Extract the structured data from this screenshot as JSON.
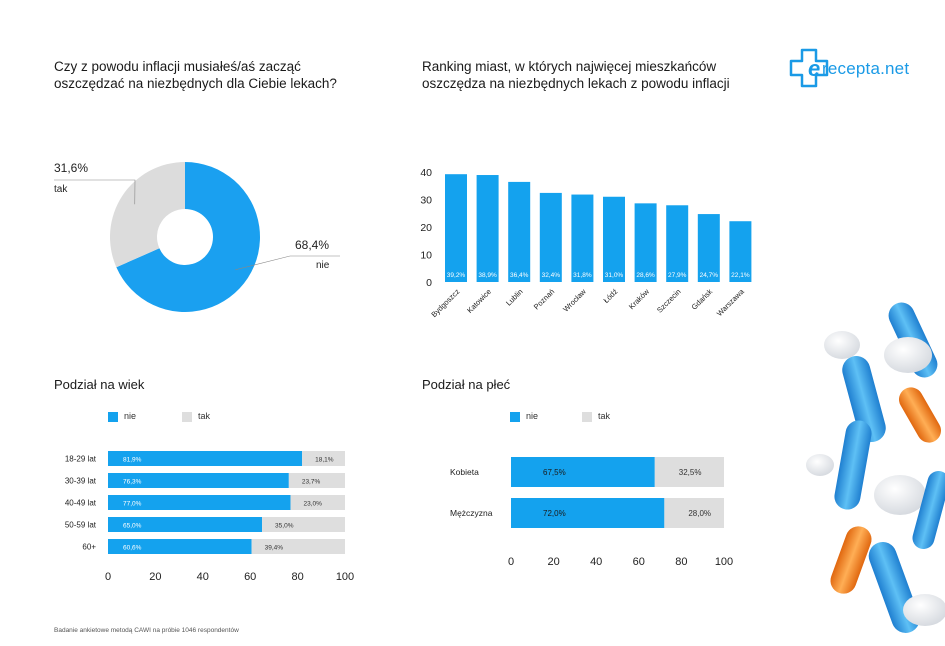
{
  "logo": {
    "text": "recepta.net",
    "brand_color": "#1a9ae6"
  },
  "colors": {
    "nie": "#14a2ee",
    "tak": "#dedede",
    "pie_nie": "#1aa0f0",
    "pie_tak": "#dcdcdc"
  },
  "pie_block": {
    "title_line1": "Czy z powodu inflacji musiałeś/aś zacząć",
    "title_line2": "oszczędzać na niezbędnych dla Ciebie lekach?"
  },
  "city_block": {
    "title_line1": "Ranking miast, w których najwięcej mieszkańców",
    "title_line2": "oszczędza na niezbędnych lekach z powodu inflacji"
  },
  "age_block": {
    "title": "Podział na wiek",
    "legend_nie": "nie",
    "legend_tak": "tak"
  },
  "gender_block": {
    "title": "Podział na płeć",
    "legend_nie": "nie",
    "legend_tak": "tak"
  },
  "footnote": "Badanie ankietowe metodą CAWI na próbie 1046 respondentów",
  "chart_data": [
    {
      "type": "pie",
      "title": "Czy z powodu inflacji musiałeś/aś zacząć oszczędzać na niezbędnych dla Ciebie lekach?",
      "slices": [
        {
          "label": "nie",
          "value": 68.4,
          "value_label": "68,4%"
        },
        {
          "label": "tak",
          "value": 31.6,
          "value_label": "31,6%"
        }
      ]
    },
    {
      "type": "bar",
      "title": "Ranking miast, w których najwięcej mieszkańców oszczędza na niezbędnych lekach z powodu inflacji",
      "categories": [
        "Bydgoszcz",
        "Katowice",
        "Lublin",
        "Poznań",
        "Wrocław",
        "Łódź",
        "Kraków",
        "Szczecin",
        "Gdańsk",
        "Warszawa"
      ],
      "values": [
        39.2,
        38.9,
        36.4,
        32.4,
        31.8,
        31.0,
        28.6,
        27.9,
        24.7,
        22.1
      ],
      "value_labels": [
        "39,2%",
        "38,9%",
        "36,4%",
        "32,4%",
        "31,8%",
        "31,0%",
        "28,6%",
        "27,9%",
        "24,7%",
        "22,1%"
      ],
      "yticks": [
        "0",
        "10",
        "20",
        "30",
        "40"
      ],
      "ylim": [
        0,
        40
      ]
    },
    {
      "type": "bar",
      "orientation": "horizontal-stacked",
      "title": "Podział na wiek",
      "categories": [
        "18-29 lat",
        "30-39 lat",
        "40-49 lat",
        "50-59 lat",
        "60+"
      ],
      "series": [
        {
          "name": "nie",
          "values": [
            81.9,
            76.3,
            77.0,
            65.0,
            60.6
          ],
          "labels": [
            "81,9%",
            "76,3%",
            "77,0%",
            "65,0%",
            "60,6%"
          ]
        },
        {
          "name": "tak",
          "values": [
            18.1,
            23.7,
            23.0,
            35.0,
            39.4
          ],
          "labels": [
            "18,1%",
            "23,7%",
            "23,0%",
            "35,0%",
            "39,4%"
          ]
        }
      ],
      "xticks": [
        "0",
        "20",
        "40",
        "60",
        "80",
        "100"
      ],
      "xlim": [
        0,
        100
      ]
    },
    {
      "type": "bar",
      "orientation": "horizontal-stacked",
      "title": "Podział na płeć",
      "categories": [
        "Kobieta",
        "Mężczyzna"
      ],
      "series": [
        {
          "name": "nie",
          "values": [
            67.5,
            72.0
          ],
          "labels": [
            "67,5%",
            "72,0%"
          ]
        },
        {
          "name": "tak",
          "values": [
            32.5,
            28.0
          ],
          "labels": [
            "32,5%",
            "28,0%"
          ]
        }
      ],
      "xticks": [
        "0",
        "20",
        "40",
        "60",
        "80",
        "100"
      ],
      "xlim": [
        0,
        100
      ]
    }
  ]
}
